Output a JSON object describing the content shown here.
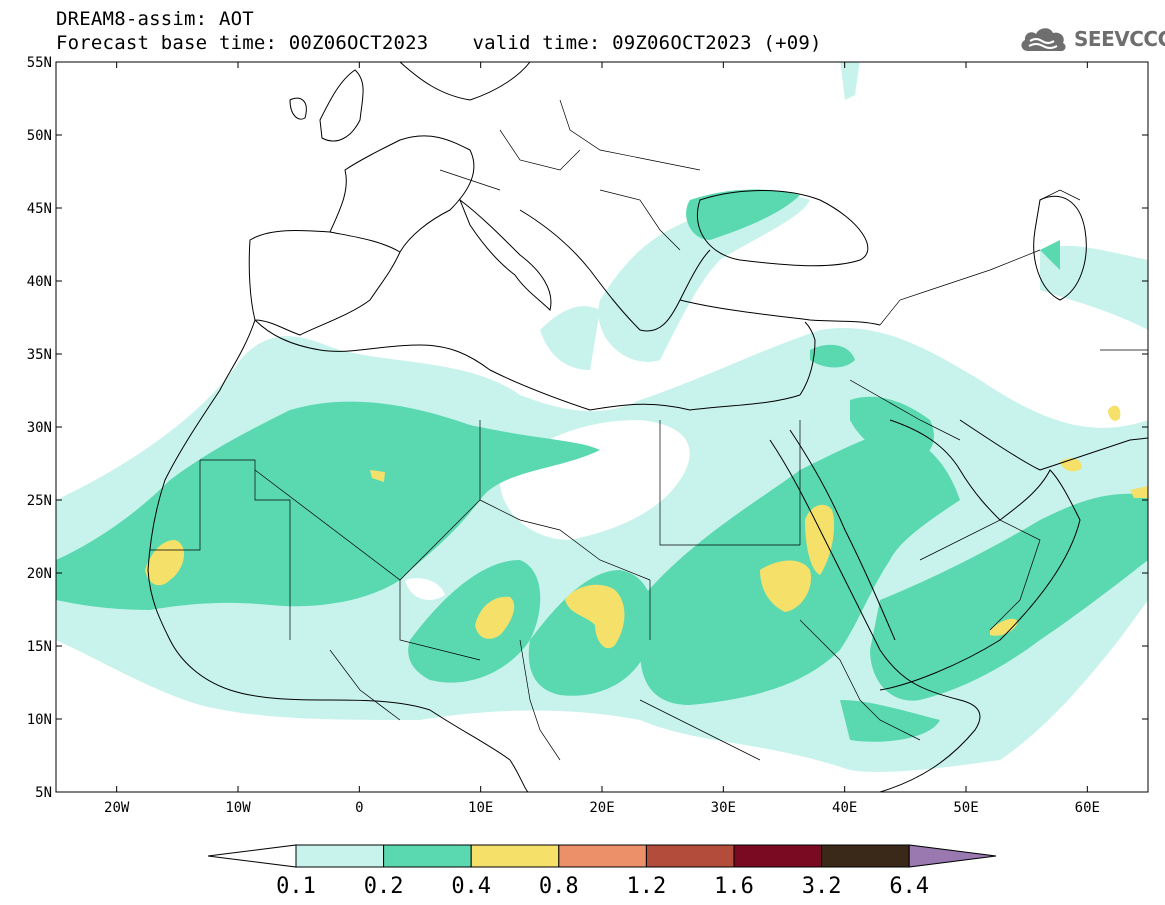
{
  "header": {
    "line1": "DREAM8-assim: AOT",
    "base_time": "Forecast base time: 00Z06OCT2023",
    "valid_time": "valid time: 09Z06OCT2023 (+09)"
  },
  "logo": {
    "text": "SEEVCCC",
    "icon": "cloud-icon",
    "color": "#6e6e6e"
  },
  "map": {
    "lat_labels": [
      "55N",
      "50N",
      "45N",
      "40N",
      "35N",
      "30N",
      "25N",
      "20N",
      "15N",
      "10N",
      "5N"
    ],
    "lon_labels": [
      "20W",
      "10W",
      "0",
      "10E",
      "20E",
      "30E",
      "40E",
      "50E",
      "60E"
    ]
  },
  "colorbar": {
    "labels": [
      "0.1",
      "0.2",
      "0.4",
      "0.8",
      "1.2",
      "1.6",
      "3.2",
      "6.4"
    ],
    "colors": [
      "#c8f3ec",
      "#5ad9b0",
      "#f5e06a",
      "#ec906a",
      "#b44c3c",
      "#7a0a22",
      "#3a2818",
      "#9a78b0"
    ],
    "low_arrow_color": "#ffffff",
    "high_arrow_color": "#9a78b0"
  }
}
